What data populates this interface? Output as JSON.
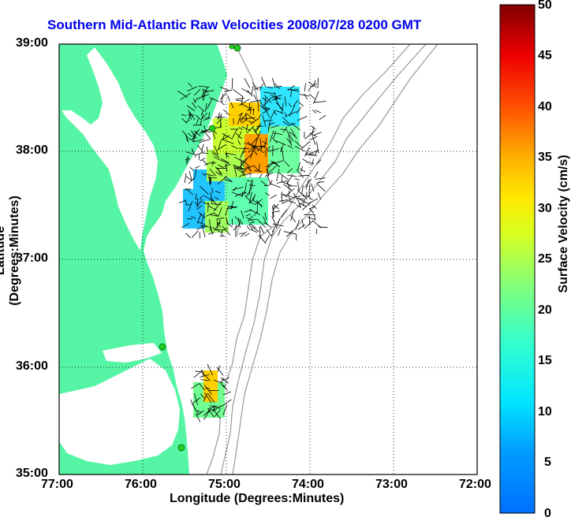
{
  "title": "Southern Mid-Atlantic Raw Velocities 2008/07/28 0200 GMT",
  "xlabel": "Longitude (Degrees:Minutes)",
  "ylabel": "Latitude (Degrees:Minutes)",
  "colorbar_label": "Surface Velocity (cm/s)",
  "x_ticks": [
    "77:00",
    "76:00",
    "75:00",
    "74:00",
    "73:00",
    "72:00"
  ],
  "y_ticks": [
    "39:00",
    "38:00",
    "37:00",
    "36:00",
    "35:00"
  ],
  "colorbar_ticks": [
    "50",
    "45",
    "40",
    "35",
    "30",
    "25",
    "20",
    "15",
    "10",
    "5",
    "0"
  ],
  "colors": {
    "land": "#55f5a5",
    "title": "#0000ee",
    "bathymetry": "#999999",
    "station": "#22cc22"
  },
  "chart_data": {
    "type": "heatmap",
    "x_range": [
      -77.0,
      -72.0
    ],
    "y_range": [
      35.0,
      39.0
    ],
    "color_range": [
      0,
      50
    ],
    "grid": true,
    "colorbar_placement": "right",
    "stations": [
      {
        "lon": -75.1,
        "lat": 38.97
      },
      {
        "lon": -75.15,
        "lat": 38.97
      },
      {
        "lon": -75.85,
        "lat": 36.18
      },
      {
        "lon": -75.47,
        "lat": 35.27
      },
      {
        "lon": -75.16,
        "lat": 38.2
      }
    ]
  }
}
